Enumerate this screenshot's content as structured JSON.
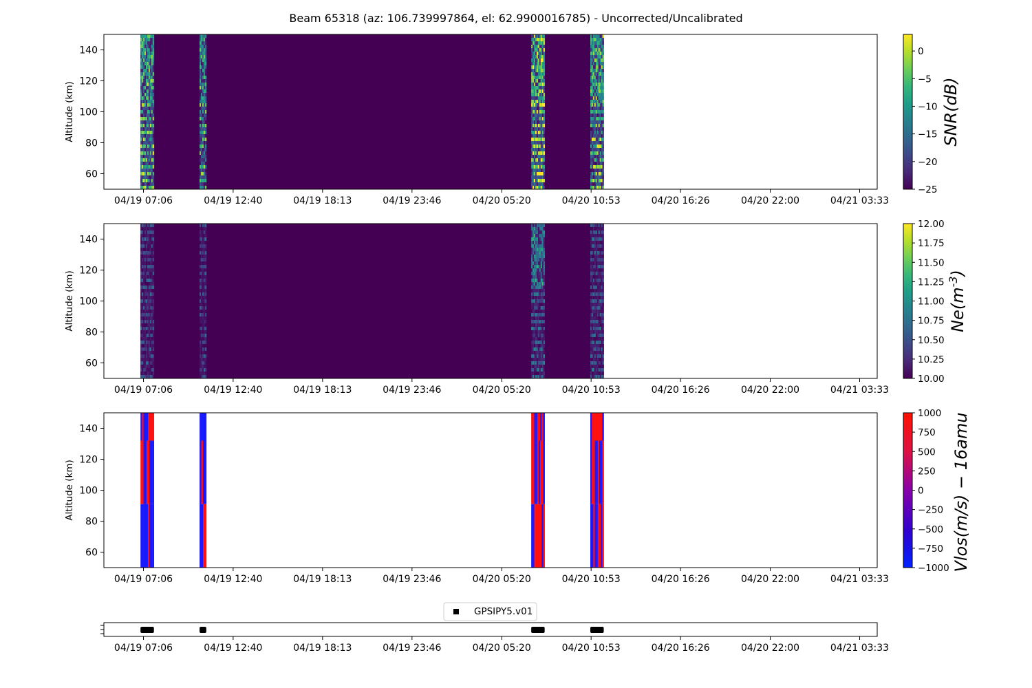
{
  "title": "Beam 65318 (az: 106.739997864, el: 62.9900016785) - Uncorrected/Uncalibrated",
  "time_ticks": [
    "04/19 07:06",
    "04/19 12:40",
    "04/19 18:13",
    "04/19 23:46",
    "04/20 05:20",
    "04/20 10:53",
    "04/20 16:26",
    "04/20 22:00",
    "04/21 03:33"
  ],
  "colors": {
    "viridis": [
      "#440154",
      "#482878",
      "#3e4989",
      "#31688e",
      "#26828e",
      "#1f9e89",
      "#35b779",
      "#6ece58",
      "#b5de2b",
      "#fde725"
    ],
    "bwr": [
      "#0000ff",
      "#ff0000"
    ]
  },
  "chart_data": [
    {
      "type": "heatmap",
      "ylabel": "Altitude (km)",
      "xlim": [
        "04/19 05:30",
        "04/21 04:00"
      ],
      "ylim": [
        50,
        150
      ],
      "yticks": [
        60,
        80,
        100,
        120,
        140
      ],
      "xticks": [
        "04/19 07:06",
        "04/19 12:40",
        "04/19 18:13",
        "04/19 23:46",
        "04/20 05:20",
        "04/20 10:53",
        "04/20 16:26",
        "04/20 22:00",
        "04/21 03:33"
      ],
      "data_span": [
        "04/19 06:55",
        "04/20 11:40"
      ],
      "colorbar": {
        "label": "SNR(dB)",
        "cmap": "viridis",
        "range": [
          -25,
          3
        ],
        "ticks": [
          "0",
          "−5",
          "−10",
          "−15",
          "−20",
          "−25"
        ],
        "tick_values": [
          0,
          -5,
          -10,
          -15,
          -20,
          -25
        ]
      },
      "active_intervals": [
        {
          "start": "04/19 06:55",
          "end": "04/19 07:45",
          "level": 0.78
        },
        {
          "start": "04/19 10:35",
          "end": "04/19 11:00",
          "level": 0.72
        },
        {
          "start": "04/20 07:10",
          "end": "04/20 08:00",
          "level": 0.95
        },
        {
          "start": "04/20 10:50",
          "end": "04/20 11:40",
          "level": 0.8
        }
      ],
      "background_value": -25
    },
    {
      "type": "heatmap",
      "ylabel": "Altitude (km)",
      "xlim": [
        "04/19 05:30",
        "04/21 04:00"
      ],
      "ylim": [
        50,
        150
      ],
      "yticks": [
        60,
        80,
        100,
        120,
        140
      ],
      "xticks": [
        "04/19 07:06",
        "04/19 12:40",
        "04/19 18:13",
        "04/19 23:46",
        "04/20 05:20",
        "04/20 10:53",
        "04/20 16:26",
        "04/20 22:00",
        "04/21 03:33"
      ],
      "data_span": [
        "04/19 06:55",
        "04/20 11:40"
      ],
      "colorbar": {
        "label": "Ne(m^-3)",
        "cmap": "viridis",
        "range": [
          10,
          12
        ],
        "ticks": [
          "12.00",
          "11.75",
          "11.50",
          "11.25",
          "11.00",
          "10.75",
          "10.50",
          "10.25",
          "10.00"
        ],
        "tick_values": [
          12,
          11.75,
          11.5,
          11.25,
          11,
          10.75,
          10.5,
          10.25,
          10
        ]
      },
      "active_intervals": [
        {
          "start": "04/19 06:55",
          "end": "04/19 07:45",
          "level": 0.35
        },
        {
          "start": "04/19 10:35",
          "end": "04/19 11:00",
          "level": 0.3
        },
        {
          "start": "04/20 07:10",
          "end": "04/20 08:00",
          "level": 0.48
        },
        {
          "start": "04/20 10:50",
          "end": "04/20 11:40",
          "level": 0.38
        }
      ],
      "background_value": 10
    },
    {
      "type": "heatmap",
      "ylabel": "Altitude (km)",
      "xlim": [
        "04/19 05:30",
        "04/21 04:00"
      ],
      "ylim": [
        50,
        150
      ],
      "yticks": [
        60,
        80,
        100,
        120,
        140
      ],
      "xticks": [
        "04/19 07:06",
        "04/19 12:40",
        "04/19 18:13",
        "04/19 23:46",
        "04/20 05:20",
        "04/20 10:53",
        "04/20 16:26",
        "04/20 22:00",
        "04/21 03:33"
      ],
      "colorbar": {
        "label": "Vlos(m/s) − 16amu",
        "cmap": "bwr",
        "range": [
          -1000,
          1000
        ],
        "ticks": [
          "1000",
          "750",
          "500",
          "250",
          "0",
          "−250",
          "−500",
          "−750",
          "−1000"
        ],
        "tick_values": [
          1000,
          750,
          500,
          250,
          0,
          -250,
          -500,
          -750,
          -1000
        ]
      },
      "active_intervals": [
        {
          "start": "04/19 06:55",
          "end": "04/19 07:45"
        },
        {
          "start": "04/19 10:35",
          "end": "04/19 11:00"
        },
        {
          "start": "04/20 07:10",
          "end": "04/20 08:00"
        },
        {
          "start": "04/20 10:50",
          "end": "04/20 11:40"
        }
      ],
      "values": [
        -1000,
        1000
      ]
    },
    {
      "type": "scatter",
      "legend": [
        "GPSIPY5.v01"
      ],
      "legend_position": "top-center",
      "xticks": [
        "04/19 07:06",
        "04/19 12:40",
        "04/19 18:13",
        "04/19 23:46",
        "04/20 05:20",
        "04/20 10:53",
        "04/20 16:26",
        "04/20 22:00",
        "04/21 03:33"
      ],
      "series": [
        {
          "name": "GPSIPY5.v01",
          "marker": "square",
          "color": "#000000",
          "intervals": [
            {
              "start": "04/19 06:55",
              "end": "04/19 07:45"
            },
            {
              "start": "04/19 10:35",
              "end": "04/19 11:00"
            },
            {
              "start": "04/20 07:10",
              "end": "04/20 08:00"
            },
            {
              "start": "04/20 10:50",
              "end": "04/20 11:40"
            }
          ]
        }
      ]
    }
  ]
}
